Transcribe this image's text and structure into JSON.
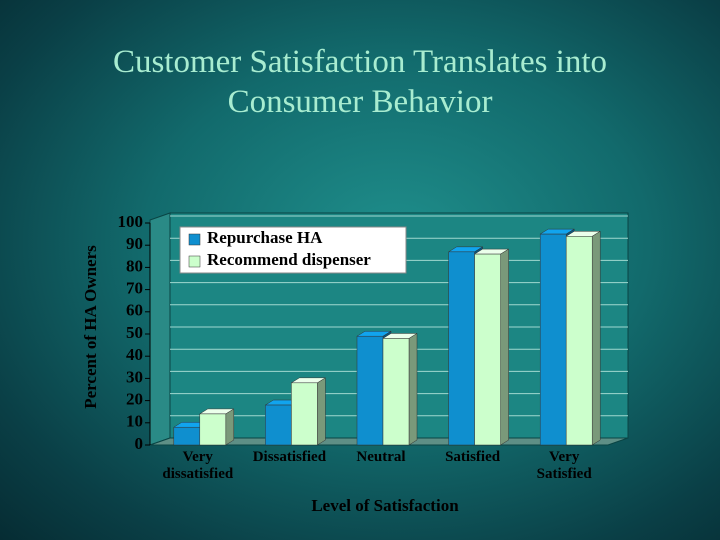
{
  "chart_data": {
    "type": "bar3d",
    "title": "Customer Satisfaction Translates into Consumer Behavior",
    "x_label": "Level of Satisfaction",
    "y_label": "Percent of HA Owners",
    "categories": [
      "Very dissatisfied",
      "Dissatisfied",
      "Neutral",
      "Satisfied",
      "Very Satisfied"
    ],
    "series": [
      {
        "name": "Repurchase HA",
        "color": "#0f8fcf",
        "values": [
          8,
          18,
          49,
          87,
          95
        ]
      },
      {
        "name": "Recommend dispenser",
        "color": "#ccffcc",
        "values": [
          14,
          28,
          48,
          86,
          94
        ]
      }
    ],
    "ylim": [
      0,
      100
    ],
    "yticks": [
      0,
      10,
      20,
      30,
      40,
      50,
      60,
      70,
      80,
      90,
      100
    ],
    "grid": true,
    "legend": "top-left"
  }
}
